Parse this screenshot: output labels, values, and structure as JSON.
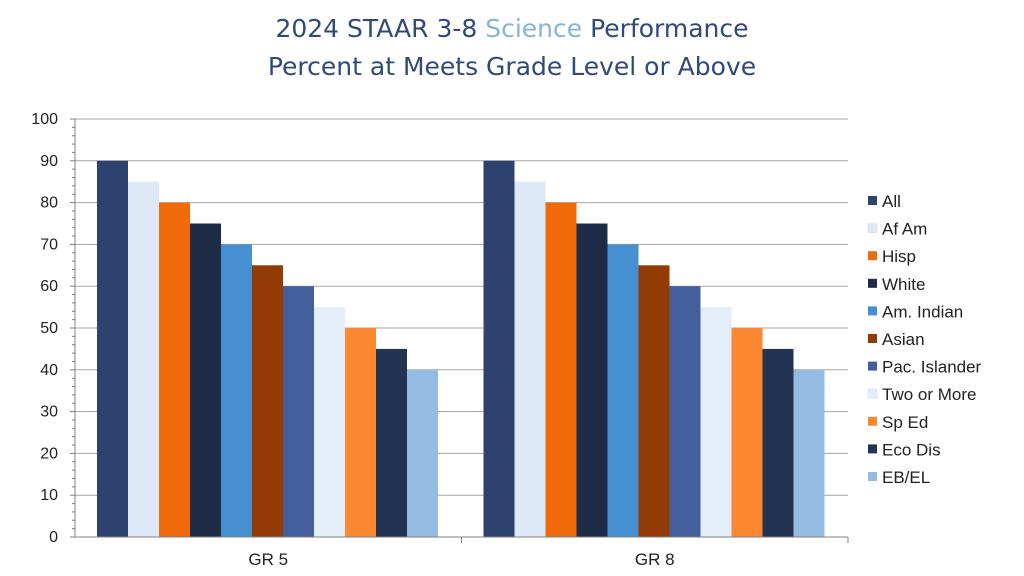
{
  "title": {
    "line1_prefix": "2024 STAAR 3-8 ",
    "line1_accent": "Science",
    "line1_suffix": " Performance",
    "line2": "Percent at Meets Grade Level or Above"
  },
  "colors": {
    "title": "#2f4a7a",
    "title_accent": "#86b4d6",
    "grid": "#a6a6a6",
    "axis": "#808080"
  },
  "chart_data": {
    "type": "bar",
    "categories": [
      "GR 5",
      "GR 8"
    ],
    "ylim": [
      0,
      100
    ],
    "yticks": [
      0,
      10,
      20,
      30,
      40,
      50,
      60,
      70,
      80,
      90,
      100
    ],
    "grid": true,
    "legend": "right",
    "series": [
      {
        "name": "All",
        "color": "#2e4270",
        "values": [
          90,
          90
        ]
      },
      {
        "name": "Af Am",
        "color": "#dde9f6",
        "values": [
          85,
          85
        ]
      },
      {
        "name": "Hisp",
        "color": "#f06a0a",
        "values": [
          80,
          80
        ]
      },
      {
        "name": "White",
        "color": "#1f2c48",
        "values": [
          75,
          75
        ]
      },
      {
        "name": "Am. Indian",
        "color": "#4690d2",
        "values": [
          70,
          70
        ]
      },
      {
        "name": "Asian",
        "color": "#923b04",
        "values": [
          65,
          65
        ]
      },
      {
        "name": "Pac. Islander",
        "color": "#455f9c",
        "values": [
          60,
          60
        ]
      },
      {
        "name": "Two or More",
        "color": "#e4eef9",
        "values": [
          55,
          55
        ]
      },
      {
        "name": "Sp Ed",
        "color": "#fb8731",
        "values": [
          50,
          50
        ]
      },
      {
        "name": "Eco Dis",
        "color": "#233353",
        "values": [
          45,
          45
        ]
      },
      {
        "name": "EB/EL",
        "color": "#94bbe1",
        "values": [
          40,
          40
        ]
      }
    ]
  }
}
